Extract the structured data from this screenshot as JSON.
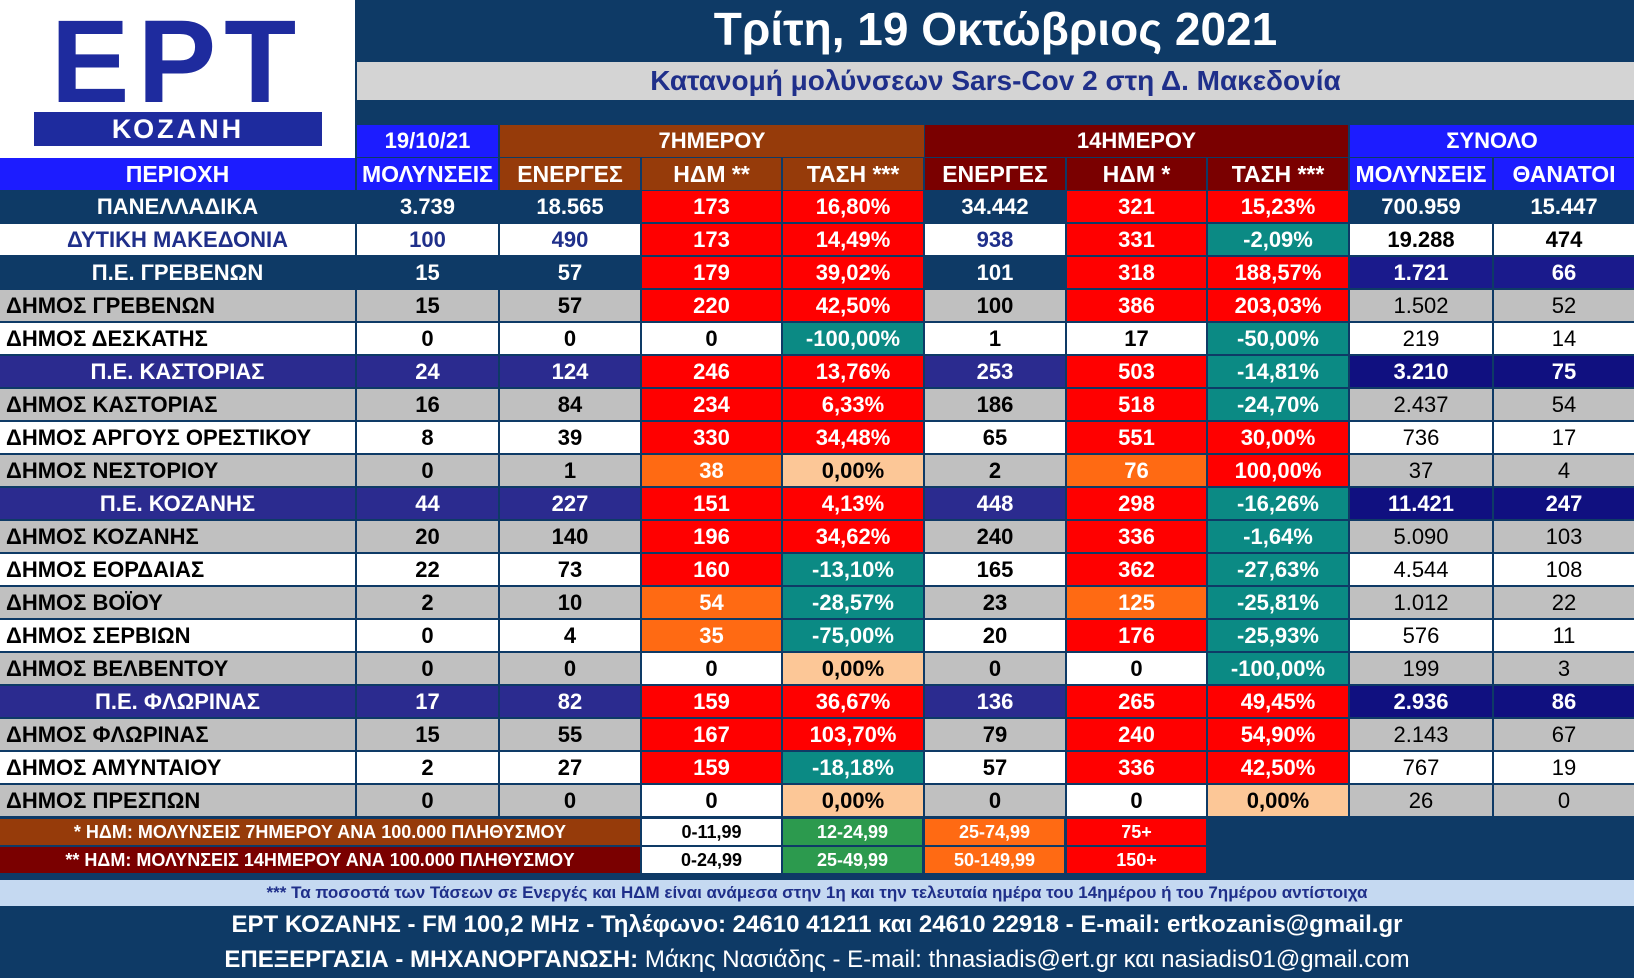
{
  "logo": {
    "main": "ΕΡΤ",
    "city": "ΚΟΖΑΝΗ"
  },
  "header": {
    "date": "Τρίτη, 19 Οκτώβριος 2021",
    "subtitle": "Κατανομή μολύνσεων Sars-Cov 2 στη Δ. Μακεδονία"
  },
  "table": {
    "group_headers": {
      "date": "19/10/21",
      "seven_day": "7ΗΜΕΡΟΥ",
      "fourteen_day": "14ΗΜΕΡΟΥ",
      "total": "ΣΥΝΟΛΟ"
    },
    "columns": [
      "ΠΕΡΙΟΧΗ",
      "ΜΟΛΥΝΣΕΙΣ",
      "ΕΝΕΡΓΕΣ",
      "ΗΔΜ **",
      "ΤΑΣΗ ***",
      "ΕΝΕΡΓΕΣ",
      "ΗΔΜ *",
      "ΤΑΣΗ ***",
      "ΜΟΛΥΝΣΕΙΣ",
      "ΘΑΝΑΤΟΙ"
    ],
    "rows": [
      {
        "type": "national",
        "cells": [
          "ΠΑΝΕΛΛΑΔΙΚΑ",
          "3.739",
          "18.565",
          "173",
          "16,80%",
          "34.442",
          "321",
          "15,23%",
          "700.959",
          "15.447"
        ],
        "c7hdm": "red",
        "c7t": "red",
        "c14hdm": "red",
        "c14t": "red"
      },
      {
        "type": "region",
        "cells": [
          "ΔΥΤΙΚΗ ΜΑΚΕΔΟΝΙΑ",
          "100",
          "490",
          "173",
          "14,49%",
          "938",
          "331",
          "-2,09%",
          "19.288",
          "474"
        ],
        "c7hdm": "red",
        "c7t": "red",
        "c14hdm": "red",
        "c14t": "teal"
      },
      {
        "type": "pe-dark",
        "cells": [
          "Π.Ε. ΓΡΕΒΕΝΩΝ",
          "15",
          "57",
          "179",
          "39,02%",
          "101",
          "318",
          "188,57%",
          "1.721",
          "66"
        ],
        "c7hdm": "red",
        "c7t": "red",
        "c14hdm": "red",
        "c14t": "red"
      },
      {
        "type": "d-grey",
        "cells": [
          "ΔΗΜΟΣ ΓΡΕΒΕΝΩΝ",
          "15",
          "57",
          "220",
          "42,50%",
          "100",
          "386",
          "203,03%",
          "1.502",
          "52"
        ],
        "c7hdm": "red",
        "c7t": "red",
        "c14hdm": "red",
        "c14t": "red"
      },
      {
        "type": "d-white",
        "cells": [
          "ΔΗΜΟΣ ΔΕΣΚΑΤΗΣ",
          "0",
          "0",
          "0",
          "-100,00%",
          "1",
          "17",
          "-50,00%",
          "219",
          "14"
        ],
        "c7hdm": "white",
        "c7t": "teal",
        "c14hdm": "white",
        "c14t": "teal"
      },
      {
        "type": "pe",
        "cells": [
          "Π.Ε. ΚΑΣΤΟΡΙΑΣ",
          "24",
          "124",
          "246",
          "13,76%",
          "253",
          "503",
          "-14,81%",
          "3.210",
          "75"
        ],
        "c7hdm": "red",
        "c7t": "red",
        "c14hdm": "red",
        "c14t": "teal"
      },
      {
        "type": "d-grey",
        "cells": [
          "ΔΗΜΟΣ ΚΑΣΤΟΡΙΑΣ",
          "16",
          "84",
          "234",
          "6,33%",
          "186",
          "518",
          "-24,70%",
          "2.437",
          "54"
        ],
        "c7hdm": "red",
        "c7t": "red",
        "c14hdm": "red",
        "c14t": "teal"
      },
      {
        "type": "d-white",
        "cells": [
          "ΔΗΜΟΣ ΑΡΓΟΥΣ ΟΡΕΣΤΙΚΟΥ",
          "8",
          "39",
          "330",
          "34,48%",
          "65",
          "551",
          "30,00%",
          "736",
          "17"
        ],
        "c7hdm": "red",
        "c7t": "red",
        "c14hdm": "red",
        "c14t": "red"
      },
      {
        "type": "d-grey",
        "cells": [
          "ΔΗΜΟΣ ΝΕΣΤΟΡΙΟΥ",
          "0",
          "1",
          "38",
          "0,00%",
          "2",
          "76",
          "100,00%",
          "37",
          "4"
        ],
        "c7hdm": "orange",
        "c7t": "peach",
        "c14hdm": "orange",
        "c14t": "red"
      },
      {
        "type": "pe",
        "cells": [
          "Π.Ε. ΚΟΖΑΝΗΣ",
          "44",
          "227",
          "151",
          "4,13%",
          "448",
          "298",
          "-16,26%",
          "11.421",
          "247"
        ],
        "c7hdm": "red",
        "c7t": "red",
        "c14hdm": "red",
        "c14t": "teal"
      },
      {
        "type": "d-grey",
        "cells": [
          "ΔΗΜΟΣ ΚΟΖΑΝΗΣ",
          "20",
          "140",
          "196",
          "34,62%",
          "240",
          "336",
          "-1,64%",
          "5.090",
          "103"
        ],
        "c7hdm": "red",
        "c7t": "red",
        "c14hdm": "red",
        "c14t": "teal"
      },
      {
        "type": "d-white",
        "cells": [
          "ΔΗΜΟΣ ΕΟΡΔΑΙΑΣ",
          "22",
          "73",
          "160",
          "-13,10%",
          "165",
          "362",
          "-27,63%",
          "4.544",
          "108"
        ],
        "c7hdm": "red",
        "c7t": "teal",
        "c14hdm": "red",
        "c14t": "teal"
      },
      {
        "type": "d-grey",
        "cells": [
          "ΔΗΜΟΣ ΒΟΪΟΥ",
          "2",
          "10",
          "54",
          "-28,57%",
          "23",
          "125",
          "-25,81%",
          "1.012",
          "22"
        ],
        "c7hdm": "orange",
        "c7t": "teal",
        "c14hdm": "orange",
        "c14t": "teal"
      },
      {
        "type": "d-white",
        "cells": [
          "ΔΗΜΟΣ ΣΕΡΒΙΩΝ",
          "0",
          "4",
          "35",
          "-75,00%",
          "20",
          "176",
          "-25,93%",
          "576",
          "11"
        ],
        "c7hdm": "orange",
        "c7t": "teal",
        "c14hdm": "red",
        "c14t": "teal"
      },
      {
        "type": "d-grey",
        "cells": [
          "ΔΗΜΟΣ ΒΕΛΒΕΝΤΟΥ",
          "0",
          "0",
          "0",
          "0,00%",
          "0",
          "0",
          "-100,00%",
          "199",
          "3"
        ],
        "c7hdm": "white",
        "c7t": "peach",
        "c14hdm": "white",
        "c14t": "teal"
      },
      {
        "type": "pe",
        "cells": [
          "Π.Ε. ΦΛΩΡΙΝΑΣ",
          "17",
          "82",
          "159",
          "36,67%",
          "136",
          "265",
          "49,45%",
          "2.936",
          "86"
        ],
        "c7hdm": "red",
        "c7t": "red",
        "c14hdm": "red",
        "c14t": "red"
      },
      {
        "type": "d-grey",
        "cells": [
          "ΔΗΜΟΣ ΦΛΩΡΙΝΑΣ",
          "15",
          "55",
          "167",
          "103,70%",
          "79",
          "240",
          "54,90%",
          "2.143",
          "67"
        ],
        "c7hdm": "red",
        "c7t": "red",
        "c14hdm": "red",
        "c14t": "red"
      },
      {
        "type": "d-white",
        "cells": [
          "ΔΗΜΟΣ ΑΜΥΝΤΑΙΟΥ",
          "2",
          "27",
          "159",
          "-18,18%",
          "57",
          "336",
          "42,50%",
          "767",
          "19"
        ],
        "c7hdm": "red",
        "c7t": "teal",
        "c14hdm": "red",
        "c14t": "red"
      },
      {
        "type": "d-grey",
        "cells": [
          "ΔΗΜΟΣ ΠΡΕΣΠΩΝ",
          "0",
          "0",
          "0",
          "0,00%",
          "0",
          "0",
          "0,00%",
          "26",
          "0"
        ],
        "c7hdm": "white",
        "c7t": "peach",
        "c14hdm": "white",
        "c14t": "peach"
      }
    ]
  },
  "legend": {
    "seven_day_label": "* ΗΔΜ: ΜΟΛΥΝΣΕΙΣ 7ΗΜΕΡΟΥ ΑΝΑ 100.000 ΠΛΗΘΥΣΜΟΥ",
    "seven_day_ranges": [
      "0-11,99",
      "12-24,99",
      "25-74,99",
      "75+"
    ],
    "fourteen_day_label": "** ΗΔΜ: ΜΟΛΥΝΣΕΙΣ 14ΗΜΕΡΟΥ ΑΝΑ 100.000 ΠΛΗΘΥΣΜΟΥ",
    "fourteen_day_ranges": [
      "0-24,99",
      "25-49,99",
      "50-149,99",
      "150+"
    ],
    "note": "*** Τα ποσοστά των Τάσεων σε Ενεργές και ΗΔΜ είναι ανάμεσα στην 1η και την τελευταία ημέρα του 14ημέρου ή του 7ημέρου αντίστοιχα"
  },
  "footer": {
    "line1": "ΕΡΤ ΚΟΖΑΝΗΣ - FM 100,2 MHz - Τηλέφωνο:  24610 41211 και 24610 22918 - E-mail: ertkozanis@gmail.gr",
    "line2_label": "ΕΠΕΞΕΡΓΑΣΙΑ  -  ΜΗΧΑΝΟΡΓΑΝΩΣΗ:",
    "line2_rest": " Μάκης Νασιάδης  -   E-mail: thnasiadis@ert.gr και nasiadis01@gmail.com"
  },
  "colors": {
    "navy": "#0e3a66",
    "blue_header": "#1c1cff",
    "brown": "#963b0a",
    "maroon": "#7a0000",
    "indigo": "#2b2b8f",
    "red": "#ff0000",
    "teal": "#0b8a84",
    "orange": "#ff6a13",
    "peach": "#fcc797",
    "grey": "#c0c0c0",
    "white": "#ffffff",
    "green": "#2c9a4e"
  }
}
